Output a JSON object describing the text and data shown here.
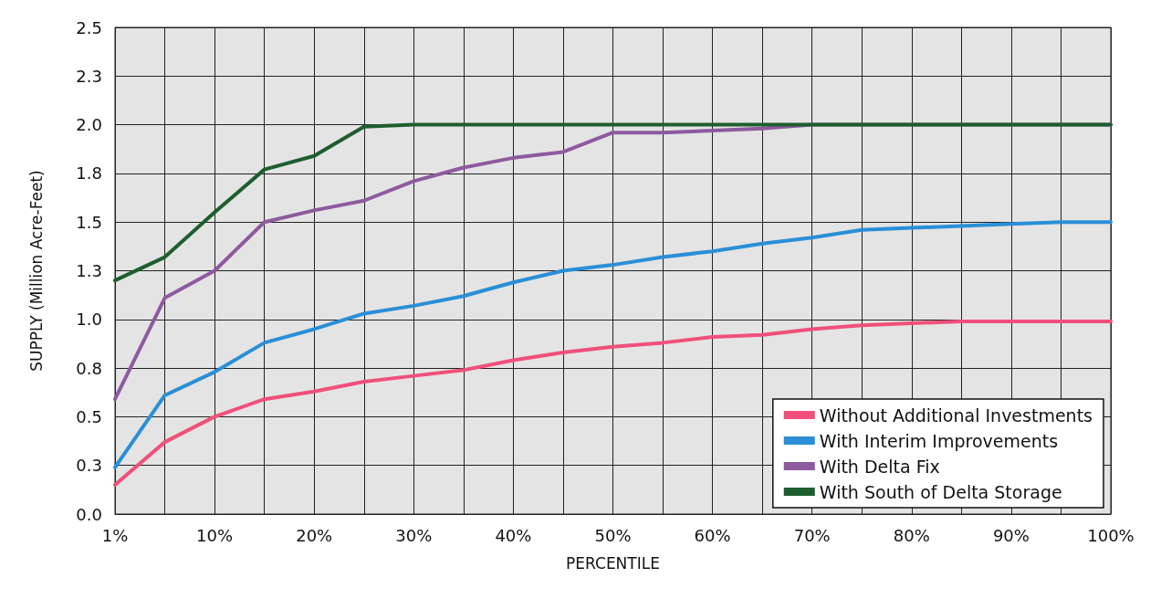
{
  "chart_data": {
    "type": "line",
    "xlabel": "PERCENTILE",
    "ylabel": "SUPPLY (Million Acre-Feet)",
    "categories": [
      "1%",
      null,
      "10%",
      null,
      "20%",
      null,
      "30%",
      null,
      "40%",
      null,
      "50%",
      null,
      "60%",
      null,
      "70%",
      null,
      "80%",
      null,
      "90%",
      null,
      "100%"
    ],
    "series": [
      {
        "name": "Without Additional Investments",
        "color": "#f0507a",
        "values": [
          0.15,
          0.37,
          0.5,
          0.59,
          0.63,
          0.68,
          0.71,
          0.74,
          0.79,
          0.83,
          0.86,
          0.88,
          0.91,
          0.92,
          0.95,
          0.97,
          0.98,
          0.99,
          0.99,
          0.99,
          0.99
        ]
      },
      {
        "name": "With Interim Improvements",
        "color": "#2a8fd6",
        "values": [
          0.24,
          0.61,
          0.73,
          0.88,
          0.95,
          1.03,
          1.07,
          1.12,
          1.19,
          1.25,
          1.28,
          1.32,
          1.35,
          1.39,
          1.42,
          1.46,
          1.47,
          1.48,
          1.49,
          1.5,
          1.5
        ]
      },
      {
        "name": "With Delta Fix",
        "color": "#8e5a9e",
        "values": [
          0.59,
          1.11,
          1.25,
          1.5,
          1.56,
          1.61,
          1.71,
          1.78,
          1.83,
          1.86,
          1.96,
          1.96,
          1.97,
          1.98,
          2.0,
          2.0,
          2.0,
          2.0,
          2.0,
          2.0,
          2.0
        ]
      },
      {
        "name": "With South of Delta Storage",
        "color": "#1e5e2e",
        "values": [
          1.2,
          1.32,
          1.55,
          1.77,
          1.84,
          1.99,
          2.0,
          2.0,
          2.0,
          2.0,
          2.0,
          2.0,
          2.0,
          2.0,
          2.0,
          2.0,
          2.0,
          2.0,
          2.0,
          2.0,
          2.0
        ]
      }
    ],
    "ylim": [
      0,
      2.5
    ],
    "yticks": [
      {
        "value": 0,
        "label": "0.0"
      },
      {
        "value": 0.25,
        "label": "0.3"
      },
      {
        "value": 0.5,
        "label": "0.5"
      },
      {
        "value": 0.75,
        "label": "0.8"
      },
      {
        "value": 1,
        "label": "1.0"
      },
      {
        "value": 1.25,
        "label": "1.3"
      },
      {
        "value": 1.5,
        "label": "1.5"
      },
      {
        "value": 1.75,
        "label": "1.8"
      },
      {
        "value": 2,
        "label": "2.0"
      },
      {
        "value": 2.25,
        "label": "2.3"
      },
      {
        "value": 2.5,
        "label": "2.5"
      }
    ],
    "grid": true,
    "legend": "bottom right",
    "marker": "none",
    "line_style": "solid"
  }
}
